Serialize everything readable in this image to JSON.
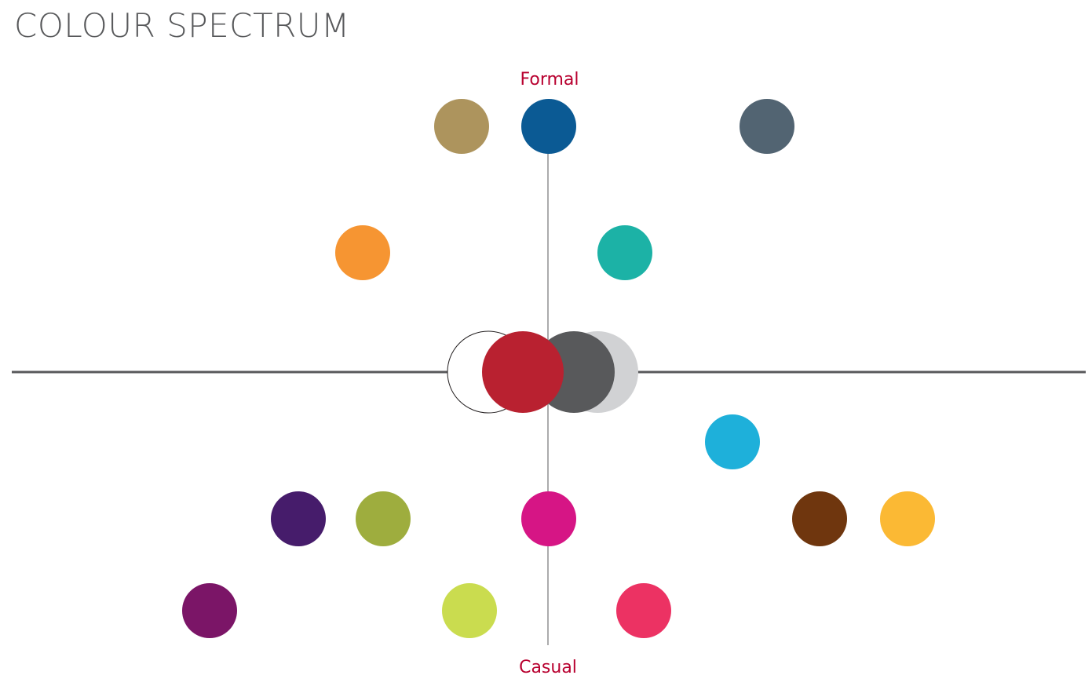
{
  "title": "COLOUR SPECTRUM",
  "axis": {
    "top_label": "Formal",
    "bottom_label": "Casual"
  },
  "colors": {
    "axis_line": "#58595b",
    "label": "#b8002f"
  },
  "dots": [
    {
      "name": "khaki",
      "color": "#ad945d"
    },
    {
      "name": "navy-blue",
      "color": "#0b5a94"
    },
    {
      "name": "slate-gray",
      "color": "#526472"
    },
    {
      "name": "orange",
      "color": "#f69532"
    },
    {
      "name": "teal",
      "color": "#1cb2a6"
    },
    {
      "name": "sky-blue",
      "color": "#1eb0da"
    },
    {
      "name": "indigo",
      "color": "#461c6b"
    },
    {
      "name": "olive-green",
      "color": "#9ead3e"
    },
    {
      "name": "magenta",
      "color": "#d61585"
    },
    {
      "name": "brown",
      "color": "#6f360e"
    },
    {
      "name": "yellow",
      "color": "#fbb934"
    },
    {
      "name": "purple",
      "color": "#7b1567"
    },
    {
      "name": "lime",
      "color": "#cadc4f"
    },
    {
      "name": "pink",
      "color": "#ec3263"
    }
  ],
  "neutrals": [
    {
      "name": "white",
      "color": "#ffffff"
    },
    {
      "name": "light-gray",
      "color": "#d1d2d4"
    },
    {
      "name": "dark-gray",
      "color": "#58595b"
    },
    {
      "name": "red",
      "color": "#b92130"
    }
  ]
}
